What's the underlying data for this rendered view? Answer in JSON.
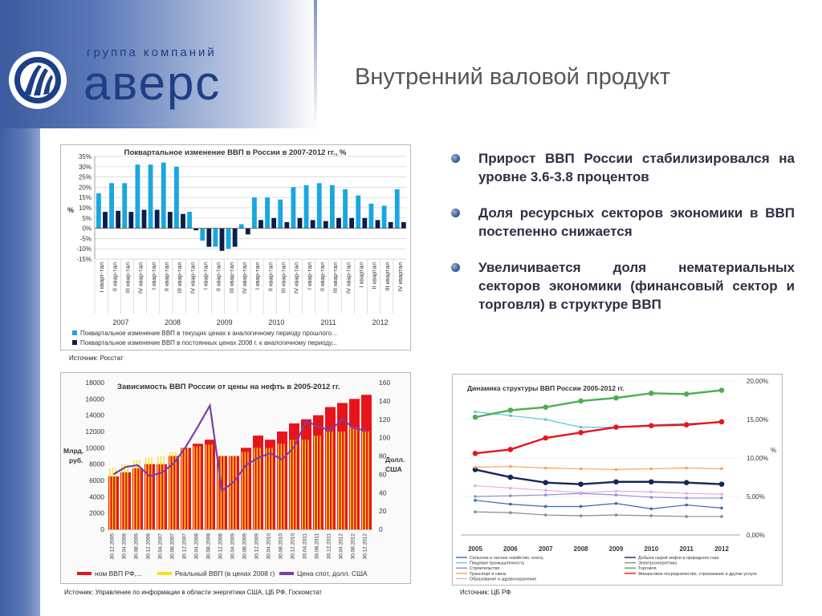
{
  "logo": {
    "subtitle": "группа компаний",
    "name": "аверс"
  },
  "title": "Внутренний валовой продукт",
  "bullets": [
    "Прирост ВВП России стабилизировался на уровне 3.6-3.8 процентов",
    "Доля ресурсных секторов экономики в ВВП постепенно снижается",
    "Увеличивается доля нематериальных секторов экономики (финансовый сектор и торговля) в структуре ВВП"
  ],
  "sources": {
    "chart1": "Источник: Росстат",
    "chart2": "Источник: Управление по информации в области энергетики США, ЦБ РФ, Госкомстат",
    "chart3": "Источник: ЦБ РФ"
  },
  "colors": {
    "light_blue": "#1aa6e0",
    "dark_navy": "#0b1f4a",
    "red": "#e8141b",
    "yellow": "#f6e21e",
    "purple": "#7a3fa8"
  },
  "chart_data": [
    {
      "type": "bar",
      "title": "Поквартальное изменение ВВП в России в 2007-2012 гг., %",
      "ylabel": "%",
      "ylim": [
        -15,
        35
      ],
      "yticks": [
        "35%",
        "30%",
        "25%",
        "20%",
        "15%",
        "10%",
        "5%",
        "0%",
        "-5%",
        "-10%",
        "-15%"
      ],
      "categories": [
        "I кварт-тал",
        "II квар-тал",
        "III квар-тал",
        "IV квар-тал",
        "I квар-тал",
        "II квар-тал",
        "III квар-тал",
        "IV квар-тал",
        "I квар-тал",
        "II квар-тал",
        "III квар-тал",
        "IV квар-тал",
        "I квар-тал",
        "II квар-тал",
        "III квар-тал",
        "IV квар-тал",
        "I квар-тал",
        "II квар-тал",
        "III квар-тал",
        "IV квар-тал",
        "I квартал",
        "II квартал",
        "III квартал",
        "IV квартал"
      ],
      "years": [
        "2007",
        "2008",
        "2009",
        "2010",
        "2011",
        "2012"
      ],
      "series": [
        {
          "name": "Поквартальное изменение ВВП в текущих ценах к аналогичному периоду прошлого...",
          "values": [
            17,
            22,
            22,
            31,
            31,
            32,
            30,
            8,
            -6,
            -9,
            -10,
            2,
            15,
            15,
            14,
            20,
            21,
            22,
            21,
            19,
            16,
            12,
            11,
            19
          ]
        },
        {
          "name": "Поквартальное изменение ВВП в постоянных ценах 2008 г. к аналогичному периоду...",
          "values": [
            8,
            8.5,
            8,
            9,
            9,
            8,
            7,
            -1,
            -9,
            -11,
            -9,
            -3,
            4,
            5,
            3,
            5,
            4,
            3.5,
            5,
            5,
            5,
            4,
            3,
            3
          ]
        }
      ]
    },
    {
      "type": "bar",
      "title": "Зависимость ВВП России от цены на нефть в 2005-2012 гг.",
      "ylabel": "Млрд. руб.",
      "y2label": "Долл. США",
      "ylim": [
        0,
        18000
      ],
      "y2lim": [
        0,
        160
      ],
      "yticks": [
        "18000",
        "16000",
        "14000",
        "12000",
        "10000",
        "8000",
        "6000",
        "4000",
        "2000",
        "0"
      ],
      "y2ticks": [
        "160",
        "140",
        "120",
        "100",
        "80",
        "60",
        "40",
        "20",
        "0"
      ],
      "categories": [
        "30.12.2005",
        "30.04.2006",
        "30.08.2006",
        "30.12.2006",
        "30.04.2007",
        "30.08.2007",
        "30.12.2007",
        "30.04.2008",
        "30.08.2008",
        "30.12.2008",
        "30.04.2009",
        "30.08.2009",
        "30.12.2009",
        "30.04.2010",
        "30.08.2010",
        "30.12.2010",
        "30.04.2011",
        "30.08.2011",
        "30.12.2011",
        "30.04.2012",
        "30.08.2012",
        "30.12.2012"
      ],
      "series": [
        {
          "name": "ном ВВП РФ,...",
          "values": [
            6500,
            7000,
            7500,
            8000,
            8000,
            9000,
            10000,
            10500,
            11000,
            9000,
            9000,
            10000,
            11500,
            11000,
            12000,
            13000,
            13500,
            14000,
            15000,
            15500,
            16000,
            16500
          ]
        },
        {
          "name": "Реальный ВВП (в ценах 2008 г)",
          "values": [
            7500,
            8000,
            8500,
            8800,
            9000,
            9500,
            10000,
            10200,
            10400,
            9000,
            9000,
            9500,
            10000,
            10000,
            10500,
            11000,
            11000,
            11500,
            12000,
            12000,
            12500,
            12000
          ]
        },
        {
          "name": "Цена спот, долл. США",
          "axis": "right",
          "values": [
            60,
            68,
            70,
            58,
            62,
            72,
            90,
            112,
            135,
            42,
            52,
            70,
            78,
            83,
            76,
            90,
            118,
            112,
            108,
            120,
            110,
            108
          ]
        }
      ]
    },
    {
      "type": "line",
      "title": "Динамика структуры ВВП России 2005-2012 гг.",
      "ylabel": "%",
      "ylim": [
        0,
        20
      ],
      "yticks": [
        "20,00%",
        "15,00%",
        "10,00%",
        "5,00%",
        "0,00%"
      ],
      "x": [
        "2005",
        "2006",
        "2007",
        "2008",
        "2009",
        "2010",
        "2011",
        "2012"
      ],
      "series": [
        {
          "name": "Сельское и лесное хозяйство, охота,",
          "color": "#3a6aa8",
          "values": [
            4.5,
            4.0,
            3.7,
            3.7,
            4.1,
            3.4,
            3.9,
            3.5
          ]
        },
        {
          "name": "Добыча сырой нефти и природного газа",
          "color": "#14265a",
          "values": [
            8.5,
            7.5,
            6.8,
            6.6,
            6.9,
            6.9,
            6.8,
            6.6
          ]
        },
        {
          "name": "Пищевая промышленность",
          "color": "#5ec4e0",
          "values": [
            16.0,
            15.5,
            15.0,
            14.0,
            14.0,
            14.3,
            14.5,
            14.6
          ]
        },
        {
          "name": "Электроэнергетика",
          "color": "#8a8a8a",
          "values": [
            3.0,
            2.9,
            2.6,
            2.5,
            2.6,
            2.5,
            2.4,
            2.4
          ]
        },
        {
          "name": "Строительство",
          "color": "#8f8fd0",
          "values": [
            5.0,
            5.1,
            5.2,
            5.4,
            5.2,
            4.9,
            4.8,
            4.8
          ]
        },
        {
          "name": "Торговля",
          "color": "#4caf50",
          "values": [
            15.3,
            16.2,
            16.6,
            17.4,
            17.8,
            18.4,
            18.3,
            18.8
          ]
        },
        {
          "name": "Транспорт и связь",
          "color": "#f4a460",
          "values": [
            8.8,
            8.9,
            8.7,
            8.6,
            8.5,
            8.6,
            8.7,
            8.6
          ]
        },
        {
          "name": "Финансовое посредничество, страхование и другие услуги",
          "color": "#e8141b",
          "values": [
            10.6,
            11.1,
            12.6,
            13.3,
            14.0,
            14.2,
            14.3,
            14.7
          ]
        },
        {
          "name": "Образование и здравоохранение",
          "color": "#e8a9e0",
          "values": [
            6.4,
            6.1,
            5.8,
            5.5,
            5.7,
            5.6,
            5.4,
            5.3
          ]
        }
      ]
    }
  ]
}
